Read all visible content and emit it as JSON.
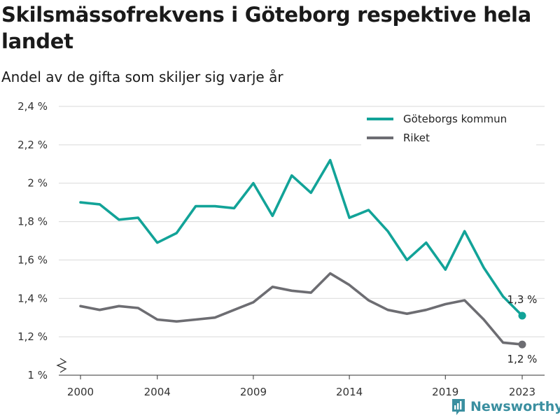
{
  "title": "Skilsmässofrekvens i Göteborg respektive hela landet",
  "subtitle": "Andel av de gifta som skiljer sig varje år",
  "brand": {
    "name": "Newsworthy",
    "icon": "bar-chart-logo-icon"
  },
  "colors": {
    "goteborg": "#12a398",
    "riket": "#6d6d72",
    "grid": "#d9d9d9",
    "axis": "#333333",
    "brand": "#3a8fa0"
  },
  "chart_data": {
    "type": "line",
    "x": [
      2000,
      2001,
      2002,
      2003,
      2004,
      2005,
      2006,
      2007,
      2008,
      2009,
      2010,
      2011,
      2012,
      2013,
      2014,
      2015,
      2016,
      2017,
      2018,
      2019,
      2020,
      2021,
      2022,
      2023
    ],
    "xticks": [
      2000,
      2004,
      2009,
      2014,
      2019,
      2023
    ],
    "xtick_labels": [
      "2000",
      "2004",
      "2009",
      "2014",
      "2019",
      "2023"
    ],
    "ylim": [
      1.0,
      2.4
    ],
    "yticks": [
      1.0,
      1.2,
      1.4,
      1.6,
      1.8,
      2.0,
      2.2,
      2.4
    ],
    "ytick_labels": [
      "1 %",
      "1,2 %",
      "1,4 %",
      "1,6 %",
      "1,8 %",
      "2 %",
      "2,2 %",
      "2,4 %"
    ],
    "axis_break": true,
    "grid": true,
    "legend_position": "top-right",
    "series": [
      {
        "name": "Göteborgs kommun",
        "color": "#12a398",
        "values": [
          1.9,
          1.89,
          1.81,
          1.82,
          1.69,
          1.74,
          1.88,
          1.88,
          1.87,
          2.0,
          1.83,
          2.04,
          1.95,
          2.12,
          1.82,
          1.86,
          1.75,
          1.6,
          1.69,
          1.55,
          1.75,
          1.56,
          1.41,
          1.31
        ],
        "end_label": "1,3 %"
      },
      {
        "name": "Riket",
        "color": "#6d6d72",
        "values": [
          1.36,
          1.34,
          1.36,
          1.35,
          1.29,
          1.28,
          1.29,
          1.3,
          1.34,
          1.38,
          1.46,
          1.44,
          1.43,
          1.53,
          1.47,
          1.39,
          1.34,
          1.32,
          1.34,
          1.37,
          1.39,
          1.29,
          1.17,
          1.16
        ],
        "end_label": "1,2 %"
      }
    ]
  }
}
